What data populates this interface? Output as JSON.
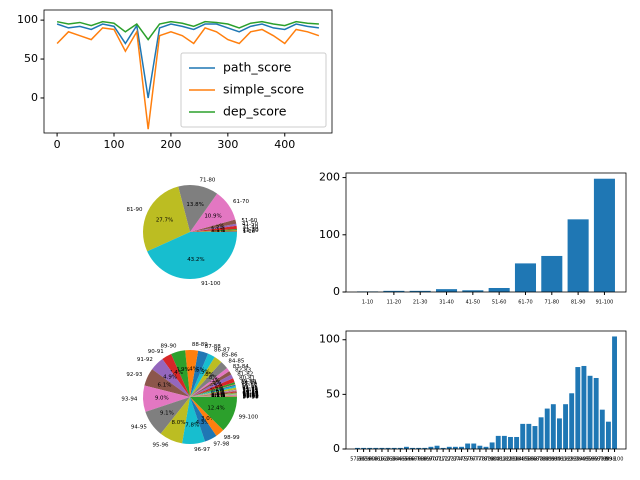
{
  "chart_data": [
    {
      "type": "line",
      "x": [
        0,
        20,
        40,
        60,
        80,
        100,
        120,
        140,
        160,
        180,
        200,
        220,
        240,
        260,
        280,
        300,
        320,
        340,
        360,
        380,
        400,
        420,
        440,
        460
      ],
      "series": [
        {
          "name": "path_score",
          "color": "#1f77b4",
          "values": [
            95,
            90,
            92,
            88,
            95,
            92,
            70,
            93,
            0,
            90,
            95,
            92,
            88,
            95,
            95,
            90,
            85,
            92,
            95,
            90,
            88,
            95,
            92,
            90
          ]
        },
        {
          "name": "simple_score",
          "color": "#ff7f0e",
          "values": [
            70,
            85,
            80,
            75,
            90,
            88,
            60,
            85,
            -40,
            80,
            85,
            80,
            70,
            90,
            85,
            75,
            70,
            85,
            88,
            80,
            70,
            88,
            85,
            80
          ]
        },
        {
          "name": "dep_score",
          "color": "#2ca02c",
          "values": [
            98,
            95,
            97,
            93,
            98,
            96,
            85,
            95,
            75,
            95,
            98,
            96,
            92,
            98,
            97,
            95,
            90,
            96,
            98,
            95,
            93,
            98,
            96,
            95
          ]
        }
      ],
      "xlim": [
        -23,
        483
      ],
      "xticks": [
        0,
        100,
        200,
        300,
        400
      ],
      "ylim": [
        -45,
        113
      ],
      "yticks": [
        0,
        50,
        100
      ],
      "legend": "lower right"
    },
    {
      "type": "pie",
      "categories": [
        "1-10",
        "11-20",
        "21-30",
        "31-40",
        "41-50",
        "51-60",
        "61-70",
        "71-80",
        "81-90",
        "91-100"
      ],
      "values": [
        0.2,
        0.4,
        0.4,
        1.1,
        0.7,
        1.5,
        10.9,
        13.8,
        27.7,
        43.2
      ],
      "value_labels": [
        "0.2%",
        "0.4%",
        "0.4%",
        "1.1%",
        "0.7%",
        "1.5%",
        "10.9%",
        "13.8%",
        "27.7%",
        "43.2%"
      ],
      "colors": [
        "#1f77b4",
        "#ff7f0e",
        "#2ca02c",
        "#d62728",
        "#9467bd",
        "#8c564b",
        "#e377c2",
        "#7f7f7f",
        "#bcbd22",
        "#17becf"
      ]
    },
    {
      "type": "bar",
      "categories": [
        "1-10",
        "11-20",
        "21-30",
        "31-40",
        "41-50",
        "51-60",
        "61-70",
        "71-80",
        "81-90",
        "91-100"
      ],
      "values": [
        1,
        2,
        2,
        5,
        3,
        7,
        50,
        63,
        127,
        198
      ],
      "color": "#1f77b4",
      "ylim": [
        0,
        208
      ],
      "yticks": [
        0,
        100,
        200
      ]
    },
    {
      "type": "pie",
      "categories": [
        "57-58",
        "58-59",
        "59-60",
        "60-61",
        "61-62",
        "62-63",
        "63-64",
        "64-65",
        "65-66",
        "66-67",
        "67-68",
        "68-69",
        "69-70",
        "70-71",
        "71-72",
        "72-73",
        "73-74",
        "74-75",
        "75-76",
        "76-77",
        "77-78",
        "78-79",
        "79-80",
        "80-81",
        "81-82",
        "82-83",
        "83-84",
        "84-85",
        "85-86",
        "86-87",
        "87-88",
        "88-89",
        "89-90",
        "90-91",
        "91-92",
        "92-93",
        "93-94",
        "94-95",
        "95-96",
        "96-97",
        "97-98",
        "98-99",
        "99-100"
      ],
      "values": [
        0.1,
        0.1,
        0.1,
        0.1,
        0.1,
        0.1,
        0.1,
        0.1,
        0.2,
        0.1,
        0.1,
        0.1,
        0.2,
        0.4,
        0.1,
        0.2,
        0.2,
        0.2,
        0.6,
        0.6,
        0.4,
        0.2,
        0.7,
        1.4,
        1.4,
        1.3,
        1.3,
        2.8,
        2.8,
        2.5,
        3.5,
        4.4,
        4.9,
        3.4,
        4.9,
        6.1,
        9.0,
        9.1,
        8.0,
        7.8,
        4.3,
        3.0,
        12.4
      ],
      "value_labels": [
        "0.1%",
        "0.1%",
        "0.1%",
        "0.1%",
        "0.1%",
        "0.1%",
        "0.1%",
        "0.1%",
        "0.2%",
        "0.1%",
        "0.1%",
        "0.1%",
        "0.2%",
        "0.4%",
        "0.1%",
        "0.2%",
        "0.2%",
        "0.2%",
        "0.6%",
        "0.6%",
        "0.4%",
        "0.2%",
        "0.7%",
        "1.4%",
        "1.4%",
        "1.3%",
        "1.3%",
        "2.8%",
        "2.8%",
        "2.5%",
        "3.5%",
        "4.4%",
        "4.9%",
        "3.4%",
        "4.9%",
        "6.1%",
        "9.0%",
        "9.1%",
        "8.0%",
        "7.8%",
        "4.3%",
        "3.0%",
        "12.4%"
      ],
      "colors": [
        "#1f77b4",
        "#ff7f0e",
        "#2ca02c",
        "#d62728",
        "#9467bd",
        "#8c564b",
        "#e377c2",
        "#7f7f7f",
        "#bcbd22",
        "#17becf"
      ]
    },
    {
      "type": "bar",
      "categories": [
        "57-58",
        "58-59",
        "59-60",
        "60-61",
        "61-62",
        "62-63",
        "63-64",
        "64-65",
        "65-66",
        "66-67",
        "67-68",
        "68-69",
        "69-70",
        "70-71",
        "71-72",
        "72-73",
        "73-74",
        "74-75",
        "75-76",
        "76-77",
        "77-78",
        "78-79",
        "79-80",
        "80-81",
        "81-82",
        "82-83",
        "83-84",
        "84-85",
        "85-86",
        "86-87",
        "87-88",
        "88-89",
        "89-90",
        "90-91",
        "91-92",
        "92-93",
        "93-94",
        "94-95",
        "95-96",
        "96-97",
        "97-98",
        "98-99",
        "99-100"
      ],
      "values": [
        1,
        1,
        1,
        1,
        1,
        1,
        1,
        1,
        2,
        1,
        1,
        1,
        2,
        3,
        1,
        2,
        2,
        2,
        5,
        5,
        3,
        2,
        6,
        12,
        12,
        11,
        11,
        23,
        23,
        21,
        29,
        37,
        41,
        28,
        41,
        51,
        75,
        76,
        67,
        65,
        36,
        25,
        103
      ],
      "color": "#1f77b4",
      "ylim": [
        0,
        108
      ],
      "yticks": [
        0,
        50,
        100
      ]
    }
  ]
}
